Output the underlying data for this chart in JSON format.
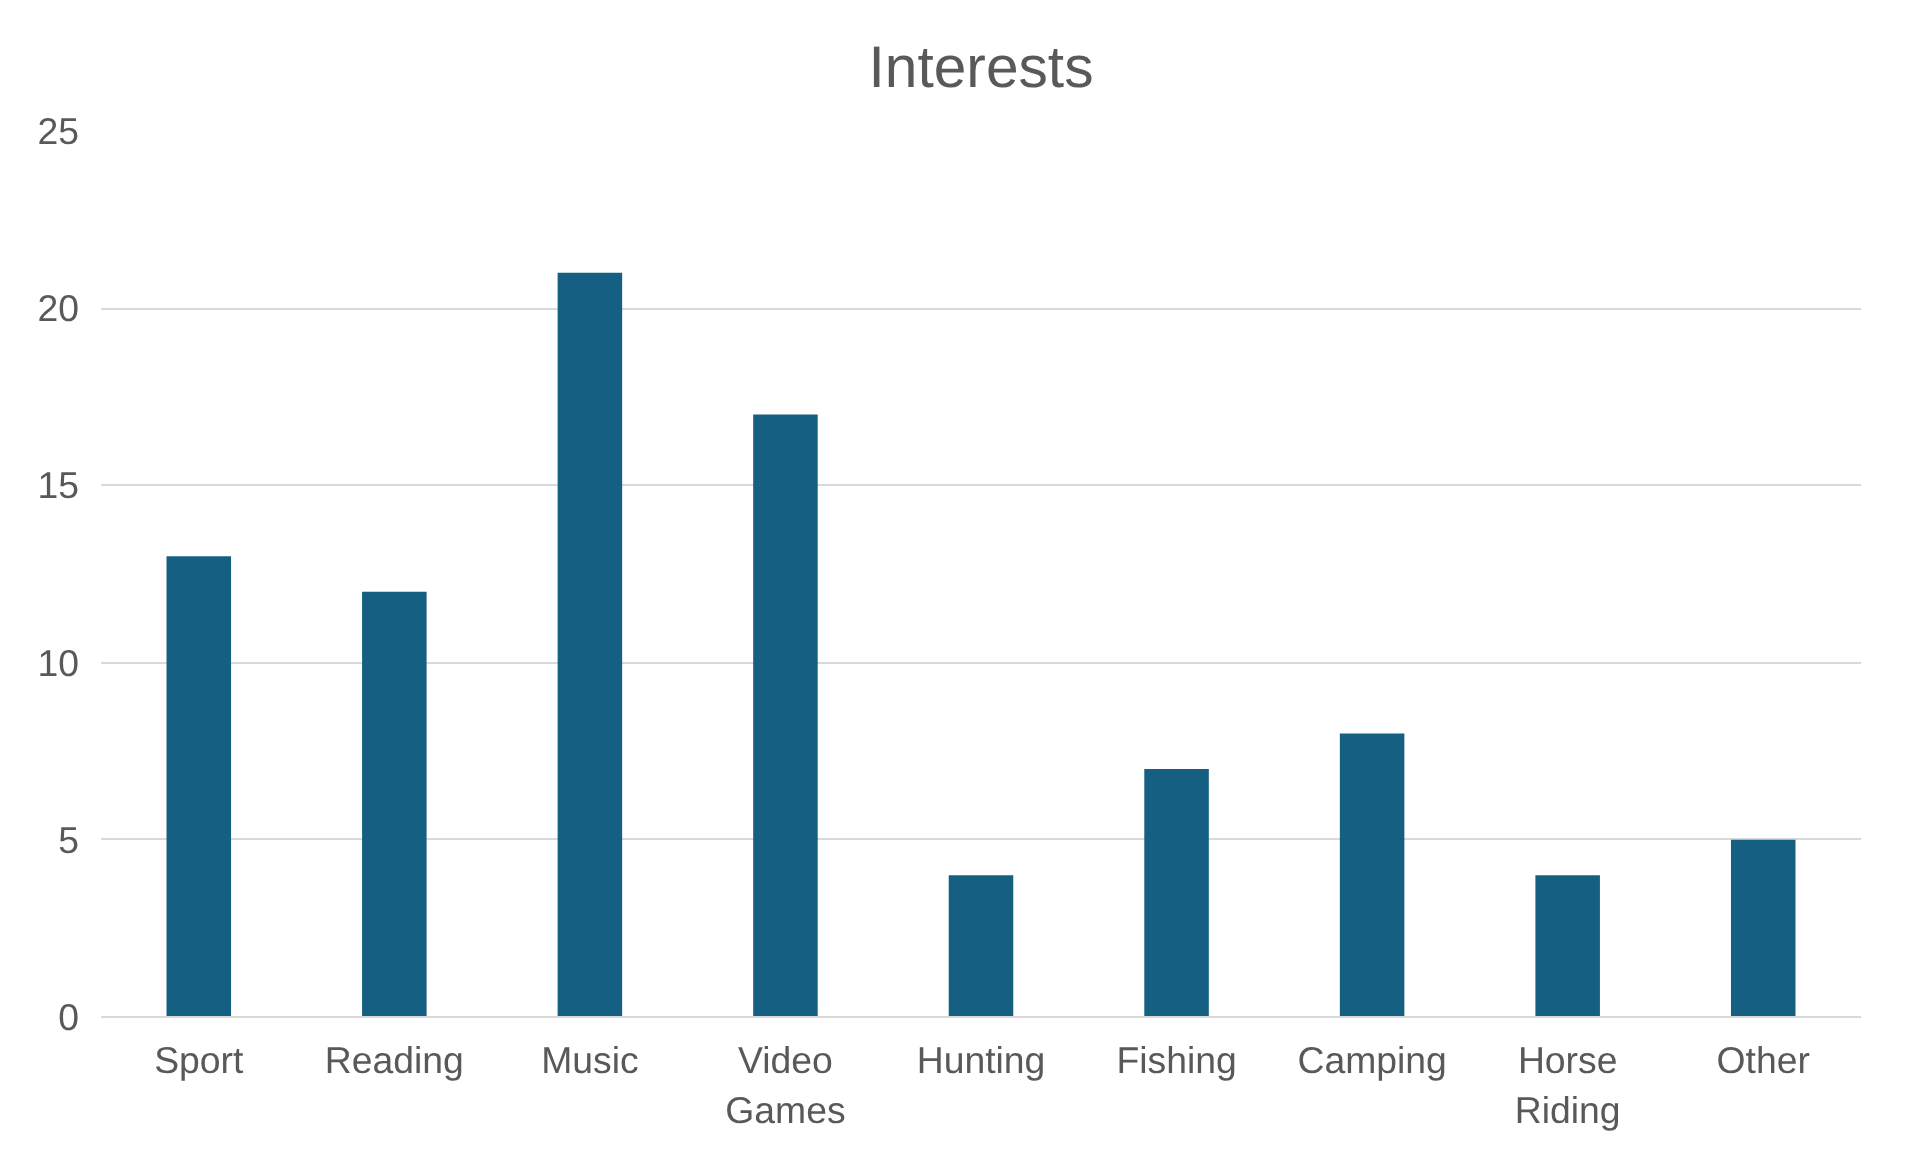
{
  "chart_data": {
    "type": "bar",
    "title": "Interests",
    "categories": [
      "Sport",
      "Reading",
      "Music",
      "Video\nGames",
      "Hunting",
      "Fishing",
      "Camping",
      "Horse\nRiding",
      "Other"
    ],
    "values": [
      13,
      12,
      21,
      17,
      4,
      7,
      8,
      4,
      5
    ],
    "color": "#156082",
    "ylim": [
      0,
      25
    ],
    "yticks": [
      0,
      5,
      10,
      15,
      20,
      25
    ],
    "grid": "y"
  }
}
